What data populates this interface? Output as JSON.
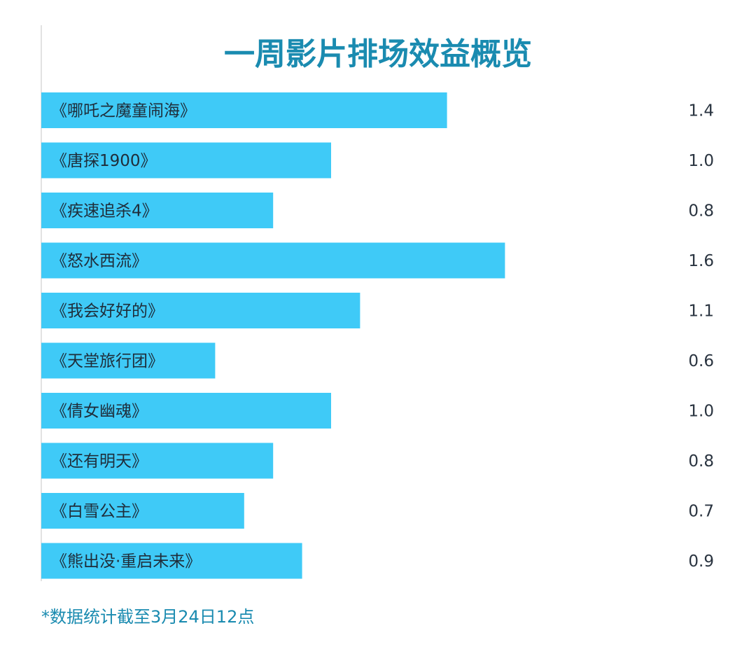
{
  "chart_data": {
    "type": "bar",
    "orientation": "horizontal",
    "title": "一周影片排场效益概览",
    "categories": [
      "《哪吒之魔童闹海》",
      "《唐探1900》",
      "《疾速追杀4》",
      "《怒水西流》",
      "《我会好好的》",
      "《天堂旅行团》",
      "《倩女幽魂》",
      "《还有明天》",
      "《白雪公主》",
      "《熊出没·重启未来》"
    ],
    "values": [
      1.4,
      1.0,
      0.8,
      1.6,
      1.1,
      0.6,
      1.0,
      0.8,
      0.7,
      0.9
    ],
    "value_labels": [
      "1.4",
      "1.0",
      "0.8",
      "1.6",
      "1.1",
      "0.6",
      "1.0",
      "0.8",
      "0.7",
      "0.9"
    ],
    "xlim": [
      0,
      2.4
    ],
    "grid": false,
    "legend": "none",
    "colors": {
      "bar": "#3fcaf7",
      "title": "#1a8bb0",
      "footnote": "#1a8bb0",
      "axis": "#d9d9d9"
    },
    "footnote": "*数据统计截至3月24日12点"
  }
}
